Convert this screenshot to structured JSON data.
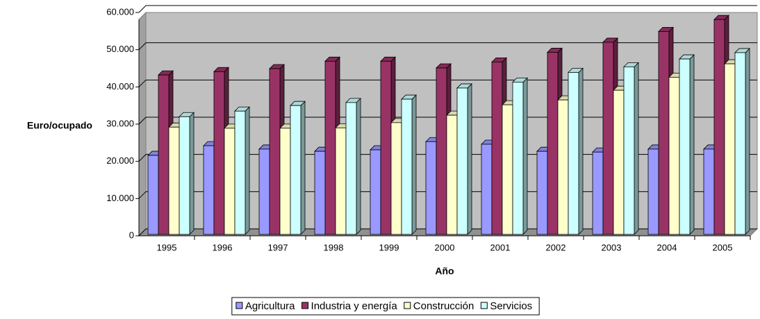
{
  "chart_data": {
    "type": "bar3d",
    "x_label": "Año",
    "y_label": "Euro/ocupado",
    "categories": [
      "1995",
      "1996",
      "1997",
      "1998",
      "1999",
      "2000",
      "2001",
      "2002",
      "2003",
      "2004",
      "2005"
    ],
    "series": [
      {
        "name": "Agricultura",
        "color": "#9999ff",
        "values": [
          21600,
          24200,
          23300,
          22700,
          23100,
          25300,
          24600,
          22700,
          22500,
          23300,
          23300
        ]
      },
      {
        "name": "Industria y energía",
        "color": "#993366",
        "values": [
          43200,
          44100,
          44900,
          46900,
          46900,
          45100,
          46700,
          49300,
          52000,
          54900,
          58100
        ]
      },
      {
        "name": "Construcción",
        "color": "#ffffcc",
        "values": [
          29200,
          28900,
          28900,
          29000,
          30400,
          32400,
          35200,
          36500,
          39100,
          42600,
          46200
        ]
      },
      {
        "name": "Servicios",
        "color": "#ccffff",
        "values": [
          32000,
          33500,
          35000,
          35800,
          36700,
          39700,
          41300,
          43900,
          45400,
          47500,
          49200
        ]
      }
    ],
    "ylim": [
      0,
      60000
    ],
    "yticks": [
      0,
      {
        "value": 10000,
        "label": "10.000"
      },
      {
        "value": 20000,
        "label": "20.000"
      },
      {
        "value": 30000,
        "label": "30.000"
      },
      {
        "value": 40000,
        "label": "40.000"
      },
      {
        "value": 50000,
        "label": "50.000"
      },
      {
        "value": 60000,
        "label": "60.000"
      }
    ],
    "grid": true,
    "legend": "bottom",
    "wall_color": "#c0c0c0"
  }
}
